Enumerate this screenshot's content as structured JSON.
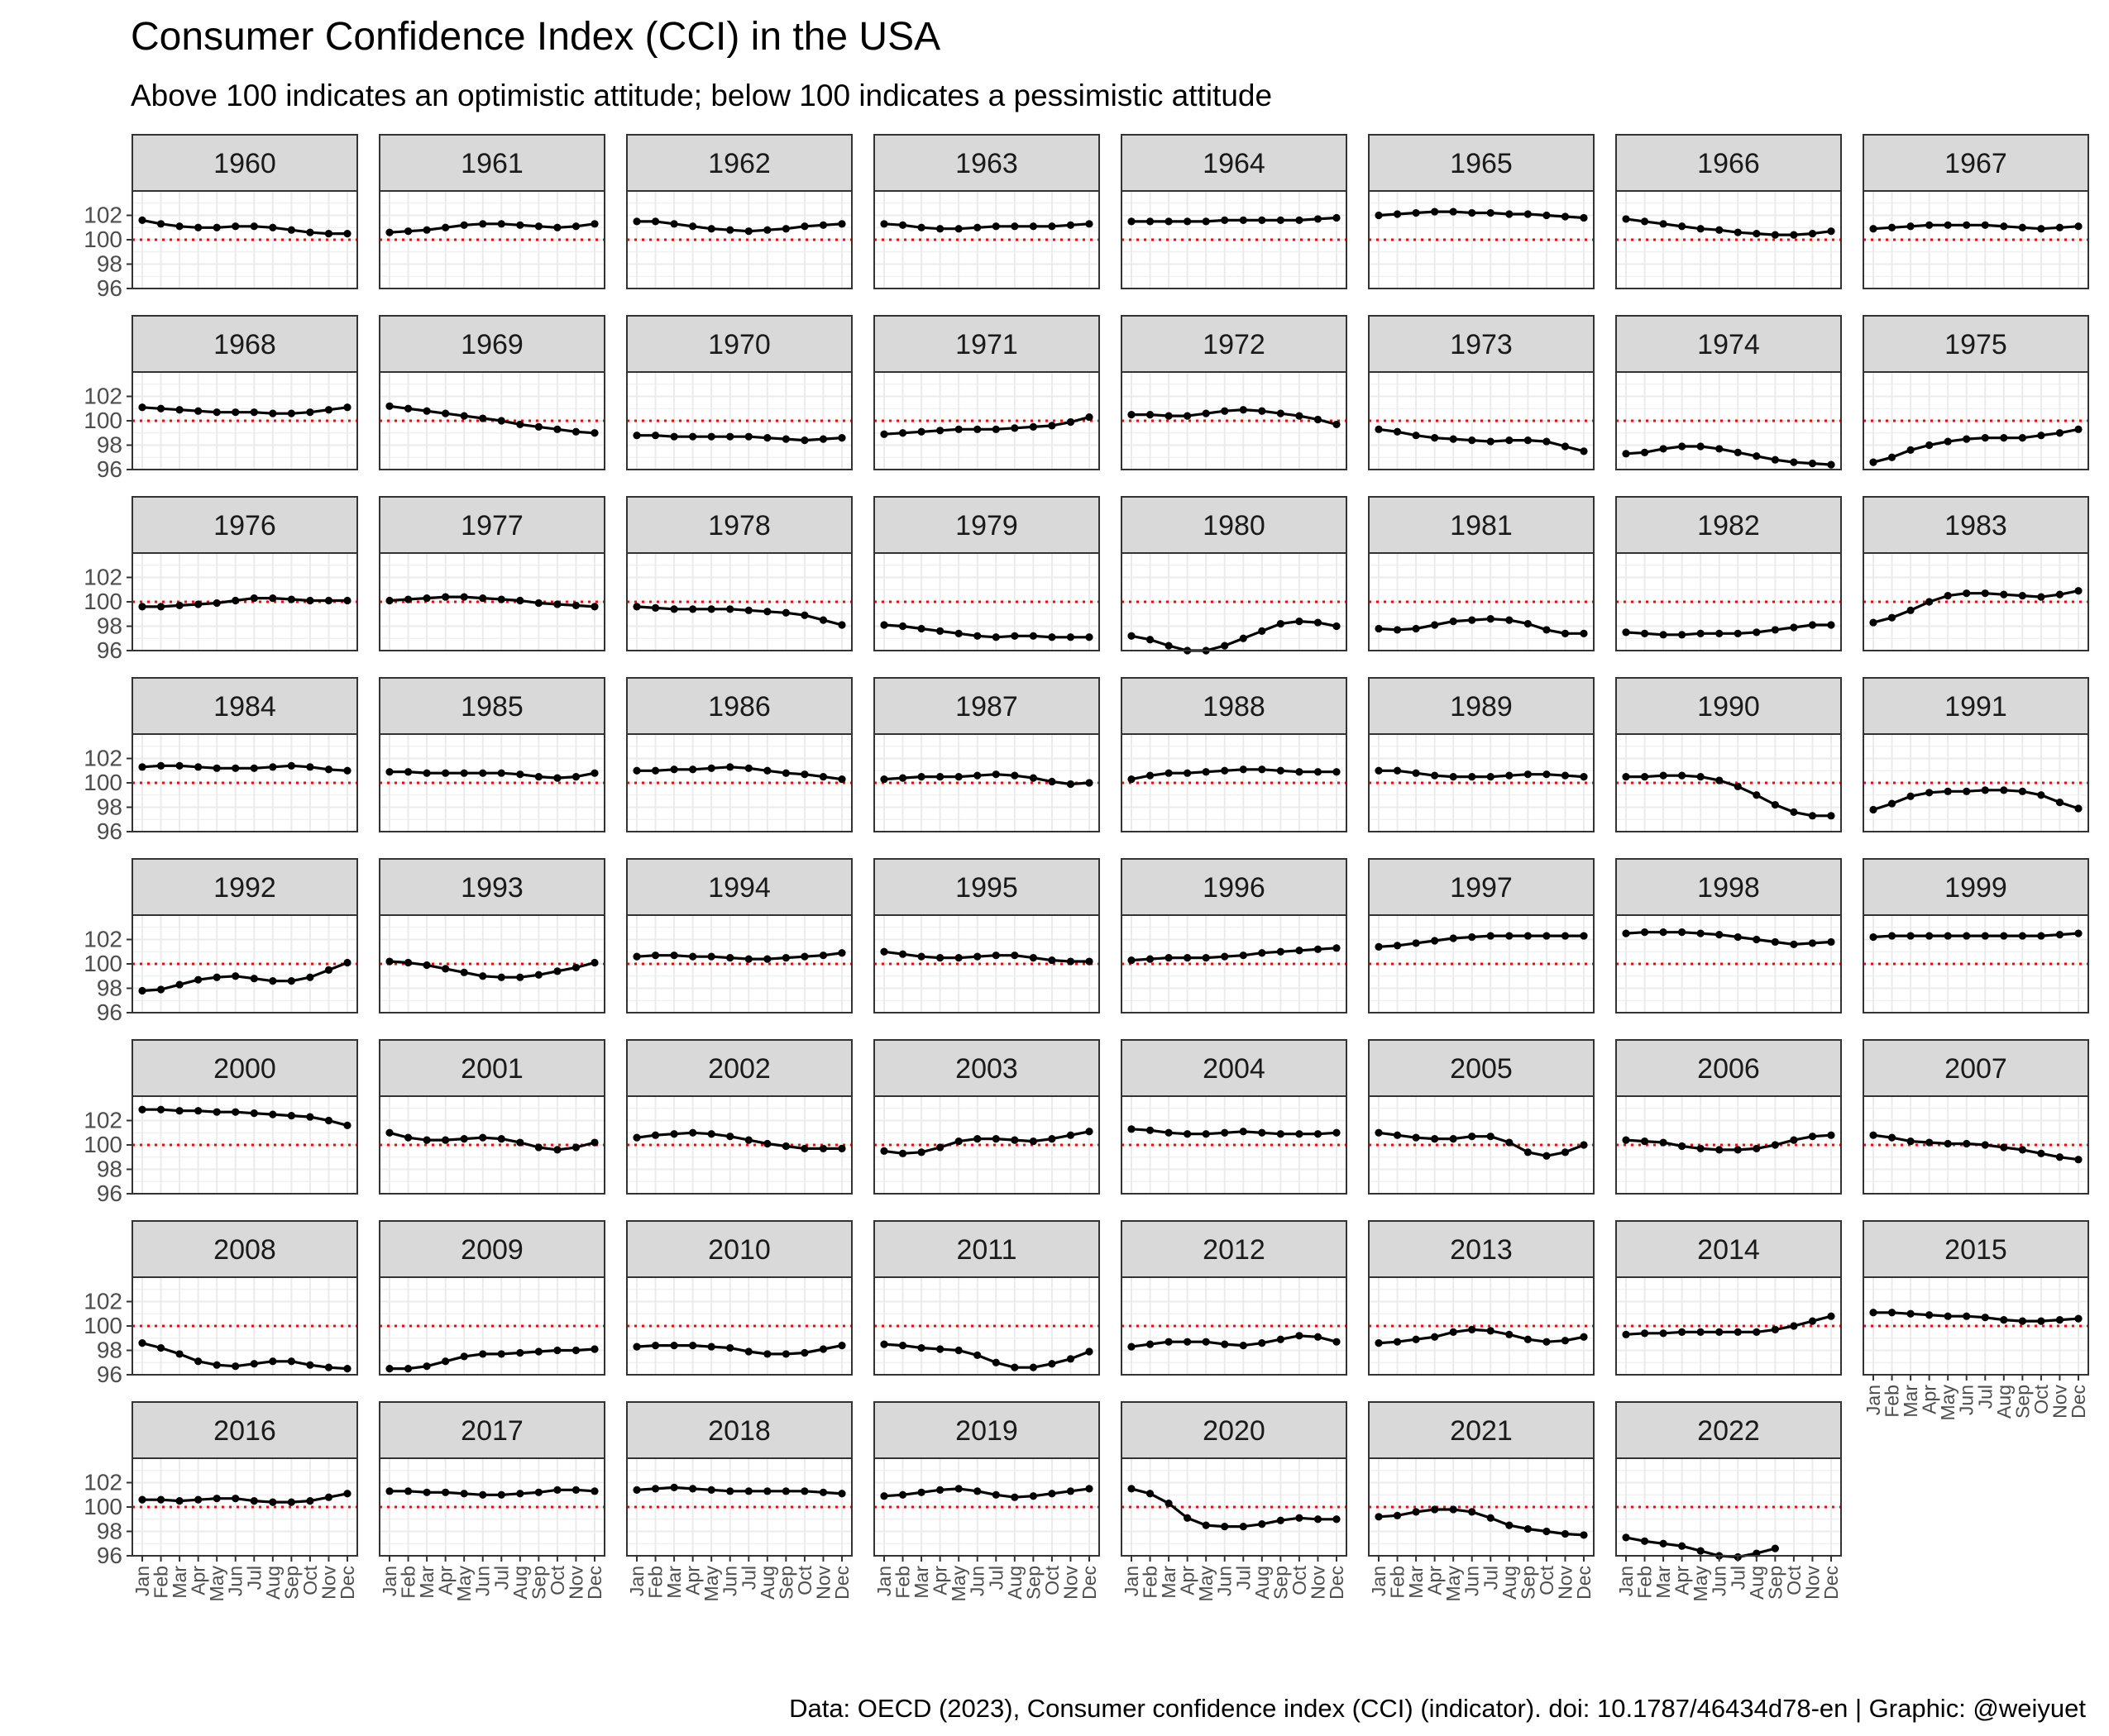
{
  "title": "Consumer Confidence Index (CCI) in the USA",
  "subtitle": "Above 100 indicates an optimistic attitude; below 100 indicates a pessimistic attitude",
  "caption": "Data: OECD (2023), Consumer confidence index (CCI) (indicator). doi: 10.1787/46434d78-en | Graphic: @weiyuet",
  "colors": {
    "line": "#000000",
    "reference_line": "#ff0000",
    "strip_fill": "#d9d9d9",
    "panel_border": "#333333",
    "grid": "#ebebeb"
  },
  "chart_data": {
    "type": "line",
    "facet": "year",
    "layout": "8 columns, 8 rows",
    "x_categories": [
      "Jan",
      "Feb",
      "Mar",
      "Apr",
      "May",
      "Jun",
      "Jul",
      "Aug",
      "Sep",
      "Oct",
      "Nov",
      "Dec"
    ],
    "ylim": [
      96,
      104
    ],
    "y_ticks": [
      96,
      98,
      100,
      102
    ],
    "reference_line": 100,
    "grid": true,
    "facets": [
      {
        "year": "1960",
        "values": [
          101.6,
          101.3,
          101.1,
          101.0,
          101.0,
          101.1,
          101.1,
          101.0,
          100.8,
          100.6,
          100.5,
          100.5
        ]
      },
      {
        "year": "1961",
        "values": [
          100.6,
          100.7,
          100.8,
          101.0,
          101.2,
          101.3,
          101.3,
          101.2,
          101.1,
          101.0,
          101.1,
          101.3
        ]
      },
      {
        "year": "1962",
        "values": [
          101.5,
          101.5,
          101.3,
          101.1,
          100.9,
          100.8,
          100.7,
          100.8,
          100.9,
          101.1,
          101.2,
          101.3
        ]
      },
      {
        "year": "1963",
        "values": [
          101.3,
          101.2,
          101.0,
          100.9,
          100.9,
          101.0,
          101.1,
          101.1,
          101.1,
          101.1,
          101.2,
          101.3
        ]
      },
      {
        "year": "1964",
        "values": [
          101.5,
          101.5,
          101.5,
          101.5,
          101.5,
          101.6,
          101.6,
          101.6,
          101.6,
          101.6,
          101.7,
          101.8
        ]
      },
      {
        "year": "1965",
        "values": [
          102.0,
          102.1,
          102.2,
          102.3,
          102.3,
          102.2,
          102.2,
          102.1,
          102.1,
          102.0,
          101.9,
          101.8
        ]
      },
      {
        "year": "1966",
        "values": [
          101.7,
          101.5,
          101.3,
          101.1,
          100.9,
          100.8,
          100.6,
          100.5,
          100.4,
          100.4,
          100.5,
          100.7
        ]
      },
      {
        "year": "1967",
        "values": [
          100.9,
          101.0,
          101.1,
          101.2,
          101.2,
          101.2,
          101.2,
          101.1,
          101.0,
          100.9,
          101.0,
          101.1
        ]
      },
      {
        "year": "1968",
        "values": [
          101.1,
          101.0,
          100.9,
          100.8,
          100.7,
          100.7,
          100.7,
          100.6,
          100.6,
          100.7,
          100.9,
          101.1
        ]
      },
      {
        "year": "1969",
        "values": [
          101.2,
          101.0,
          100.8,
          100.6,
          100.4,
          100.2,
          100.0,
          99.7,
          99.5,
          99.3,
          99.1,
          99.0
        ]
      },
      {
        "year": "1970",
        "values": [
          98.8,
          98.8,
          98.7,
          98.7,
          98.7,
          98.7,
          98.7,
          98.6,
          98.5,
          98.4,
          98.5,
          98.6
        ]
      },
      {
        "year": "1971",
        "values": [
          98.9,
          99.0,
          99.1,
          99.2,
          99.3,
          99.3,
          99.3,
          99.4,
          99.5,
          99.6,
          99.9,
          100.3
        ]
      },
      {
        "year": "1972",
        "values": [
          100.5,
          100.5,
          100.4,
          100.4,
          100.6,
          100.8,
          100.9,
          100.8,
          100.6,
          100.4,
          100.1,
          99.7
        ]
      },
      {
        "year": "1973",
        "values": [
          99.3,
          99.1,
          98.8,
          98.6,
          98.5,
          98.4,
          98.3,
          98.4,
          98.4,
          98.3,
          97.9,
          97.5
        ]
      },
      {
        "year": "1974",
        "values": [
          97.3,
          97.4,
          97.7,
          97.9,
          97.9,
          97.7,
          97.4,
          97.1,
          96.8,
          96.6,
          96.5,
          96.4
        ]
      },
      {
        "year": "1975",
        "values": [
          96.6,
          97.0,
          97.6,
          98.0,
          98.3,
          98.5,
          98.6,
          98.6,
          98.6,
          98.8,
          99.0,
          99.3
        ]
      },
      {
        "year": "1976",
        "values": [
          99.6,
          99.6,
          99.7,
          99.8,
          99.9,
          100.1,
          100.3,
          100.3,
          100.2,
          100.1,
          100.1,
          100.1
        ]
      },
      {
        "year": "1977",
        "values": [
          100.1,
          100.2,
          100.3,
          100.4,
          100.4,
          100.3,
          100.2,
          100.1,
          99.9,
          99.8,
          99.7,
          99.6
        ]
      },
      {
        "year": "1978",
        "values": [
          99.6,
          99.5,
          99.4,
          99.4,
          99.4,
          99.4,
          99.3,
          99.2,
          99.1,
          98.9,
          98.5,
          98.1
        ]
      },
      {
        "year": "1979",
        "values": [
          98.1,
          98.0,
          97.8,
          97.6,
          97.4,
          97.2,
          97.1,
          97.2,
          97.2,
          97.1,
          97.1,
          97.1
        ]
      },
      {
        "year": "1980",
        "values": [
          97.2,
          96.9,
          96.4,
          96.0,
          96.0,
          96.4,
          97.0,
          97.6,
          98.2,
          98.4,
          98.3,
          98.0
        ]
      },
      {
        "year": "1981",
        "values": [
          97.8,
          97.7,
          97.8,
          98.1,
          98.4,
          98.5,
          98.6,
          98.5,
          98.2,
          97.7,
          97.4,
          97.4
        ]
      },
      {
        "year": "1982",
        "values": [
          97.5,
          97.4,
          97.3,
          97.3,
          97.4,
          97.4,
          97.4,
          97.5,
          97.7,
          97.9,
          98.1,
          98.1
        ]
      },
      {
        "year": "1983",
        "values": [
          98.3,
          98.7,
          99.3,
          100.0,
          100.5,
          100.7,
          100.7,
          100.6,
          100.5,
          100.4,
          100.6,
          100.9
        ]
      },
      {
        "year": "1984",
        "values": [
          101.3,
          101.4,
          101.4,
          101.3,
          101.2,
          101.2,
          101.2,
          101.3,
          101.4,
          101.3,
          101.1,
          101.0
        ]
      },
      {
        "year": "1985",
        "values": [
          100.9,
          100.9,
          100.8,
          100.8,
          100.8,
          100.8,
          100.8,
          100.7,
          100.5,
          100.4,
          100.5,
          100.8
        ]
      },
      {
        "year": "1986",
        "values": [
          101.0,
          101.0,
          101.1,
          101.1,
          101.2,
          101.3,
          101.2,
          101.0,
          100.8,
          100.7,
          100.5,
          100.3
        ]
      },
      {
        "year": "1987",
        "values": [
          100.3,
          100.4,
          100.5,
          100.5,
          100.5,
          100.6,
          100.7,
          100.6,
          100.4,
          100.1,
          99.9,
          100.0
        ]
      },
      {
        "year": "1988",
        "values": [
          100.3,
          100.6,
          100.8,
          100.8,
          100.9,
          101.0,
          101.1,
          101.1,
          101.0,
          100.9,
          100.9,
          100.9
        ]
      },
      {
        "year": "1989",
        "values": [
          101.0,
          101.0,
          100.8,
          100.6,
          100.5,
          100.5,
          100.5,
          100.6,
          100.7,
          100.7,
          100.6,
          100.5
        ]
      },
      {
        "year": "1990",
        "values": [
          100.5,
          100.5,
          100.6,
          100.6,
          100.5,
          100.2,
          99.7,
          99.0,
          98.2,
          97.6,
          97.3,
          97.3
        ]
      },
      {
        "year": "1991",
        "values": [
          97.8,
          98.3,
          98.9,
          99.2,
          99.3,
          99.3,
          99.4,
          99.4,
          99.3,
          99.0,
          98.4,
          97.9
        ]
      },
      {
        "year": "1992",
        "values": [
          97.8,
          97.9,
          98.3,
          98.7,
          98.9,
          99.0,
          98.8,
          98.6,
          98.6,
          98.9,
          99.5,
          100.1
        ]
      },
      {
        "year": "1993",
        "values": [
          100.2,
          100.1,
          99.9,
          99.6,
          99.3,
          99.0,
          98.9,
          98.9,
          99.1,
          99.4,
          99.7,
          100.1
        ]
      },
      {
        "year": "1994",
        "values": [
          100.6,
          100.7,
          100.7,
          100.6,
          100.6,
          100.5,
          100.4,
          100.4,
          100.5,
          100.6,
          100.7,
          100.9
        ]
      },
      {
        "year": "1995",
        "values": [
          101.0,
          100.8,
          100.6,
          100.5,
          100.5,
          100.6,
          100.7,
          100.7,
          100.5,
          100.3,
          100.2,
          100.2
        ]
      },
      {
        "year": "1996",
        "values": [
          100.3,
          100.4,
          100.5,
          100.5,
          100.5,
          100.6,
          100.7,
          100.9,
          101.0,
          101.1,
          101.2,
          101.3
        ]
      },
      {
        "year": "1997",
        "values": [
          101.4,
          101.5,
          101.7,
          101.9,
          102.1,
          102.2,
          102.3,
          102.3,
          102.3,
          102.3,
          102.3,
          102.3
        ]
      },
      {
        "year": "1998",
        "values": [
          102.5,
          102.6,
          102.6,
          102.6,
          102.5,
          102.4,
          102.2,
          102.0,
          101.8,
          101.6,
          101.7,
          101.8
        ]
      },
      {
        "year": "1999",
        "values": [
          102.2,
          102.3,
          102.3,
          102.3,
          102.3,
          102.3,
          102.3,
          102.3,
          102.3,
          102.3,
          102.4,
          102.5
        ]
      },
      {
        "year": "2000",
        "values": [
          102.9,
          102.9,
          102.8,
          102.8,
          102.7,
          102.7,
          102.6,
          102.5,
          102.4,
          102.3,
          102.0,
          101.6
        ]
      },
      {
        "year": "2001",
        "values": [
          101.0,
          100.6,
          100.4,
          100.4,
          100.5,
          100.6,
          100.5,
          100.2,
          99.8,
          99.6,
          99.8,
          100.2
        ]
      },
      {
        "year": "2002",
        "values": [
          100.6,
          100.8,
          100.9,
          101.0,
          100.9,
          100.7,
          100.4,
          100.1,
          99.9,
          99.7,
          99.7,
          99.7
        ]
      },
      {
        "year": "2003",
        "values": [
          99.5,
          99.3,
          99.4,
          99.8,
          100.3,
          100.5,
          100.5,
          100.4,
          100.3,
          100.5,
          100.8,
          101.1
        ]
      },
      {
        "year": "2004",
        "values": [
          101.3,
          101.2,
          101.0,
          100.9,
          100.9,
          101.0,
          101.1,
          101.0,
          100.9,
          100.9,
          100.9,
          101.0
        ]
      },
      {
        "year": "2005",
        "values": [
          101.0,
          100.8,
          100.6,
          100.5,
          100.5,
          100.7,
          100.7,
          100.2,
          99.4,
          99.1,
          99.4,
          100.0
        ]
      },
      {
        "year": "2006",
        "values": [
          100.4,
          100.3,
          100.2,
          99.9,
          99.7,
          99.6,
          99.6,
          99.7,
          100.0,
          100.4,
          100.7,
          100.8
        ]
      },
      {
        "year": "2007",
        "values": [
          100.8,
          100.6,
          100.3,
          100.2,
          100.1,
          100.1,
          100.0,
          99.8,
          99.6,
          99.3,
          99.0,
          98.8
        ]
      },
      {
        "year": "2008",
        "values": [
          98.6,
          98.2,
          97.7,
          97.1,
          96.8,
          96.7,
          96.9,
          97.1,
          97.1,
          96.8,
          96.6,
          96.5
        ]
      },
      {
        "year": "2009",
        "values": [
          96.5,
          96.5,
          96.7,
          97.1,
          97.5,
          97.7,
          97.7,
          97.8,
          97.9,
          98.0,
          98.0,
          98.1
        ]
      },
      {
        "year": "2010",
        "values": [
          98.3,
          98.4,
          98.4,
          98.4,
          98.3,
          98.2,
          97.9,
          97.7,
          97.7,
          97.8,
          98.1,
          98.4
        ]
      },
      {
        "year": "2011",
        "values": [
          98.5,
          98.4,
          98.2,
          98.1,
          98.0,
          97.6,
          97.0,
          96.6,
          96.6,
          96.9,
          97.3,
          97.9
        ]
      },
      {
        "year": "2012",
        "values": [
          98.3,
          98.5,
          98.7,
          98.7,
          98.7,
          98.5,
          98.4,
          98.6,
          98.9,
          99.2,
          99.1,
          98.7
        ]
      },
      {
        "year": "2013",
        "values": [
          98.6,
          98.7,
          98.9,
          99.1,
          99.5,
          99.7,
          99.6,
          99.3,
          98.9,
          98.7,
          98.8,
          99.1
        ]
      },
      {
        "year": "2014",
        "values": [
          99.3,
          99.4,
          99.4,
          99.5,
          99.5,
          99.5,
          99.5,
          99.5,
          99.7,
          100.0,
          100.4,
          100.8
        ]
      },
      {
        "year": "2015",
        "values": [
          101.1,
          101.1,
          101.0,
          100.9,
          100.8,
          100.8,
          100.7,
          100.5,
          100.4,
          100.4,
          100.5,
          100.6
        ]
      },
      {
        "year": "2016",
        "values": [
          100.6,
          100.6,
          100.5,
          100.6,
          100.7,
          100.7,
          100.5,
          100.4,
          100.4,
          100.5,
          100.8,
          101.1
        ]
      },
      {
        "year": "2017",
        "values": [
          101.3,
          101.3,
          101.2,
          101.2,
          101.1,
          101.0,
          101.0,
          101.1,
          101.2,
          101.4,
          101.4,
          101.3
        ]
      },
      {
        "year": "2018",
        "values": [
          101.4,
          101.5,
          101.6,
          101.5,
          101.4,
          101.3,
          101.3,
          101.3,
          101.3,
          101.3,
          101.2,
          101.1
        ]
      },
      {
        "year": "2019",
        "values": [
          100.9,
          101.0,
          101.2,
          101.4,
          101.5,
          101.3,
          101.0,
          100.8,
          100.9,
          101.1,
          101.3,
          101.5
        ]
      },
      {
        "year": "2020",
        "values": [
          101.5,
          101.1,
          100.3,
          99.1,
          98.5,
          98.4,
          98.4,
          98.6,
          98.9,
          99.1,
          99.0,
          99.0
        ]
      },
      {
        "year": "2021",
        "values": [
          99.2,
          99.3,
          99.6,
          99.8,
          99.8,
          99.6,
          99.1,
          98.5,
          98.2,
          98.0,
          97.8,
          97.7
        ]
      },
      {
        "year": "2022",
        "values": [
          97.5,
          97.2,
          97.0,
          96.8,
          96.4,
          96.0,
          95.9,
          96.2,
          96.6,
          null,
          null,
          null
        ]
      }
    ]
  }
}
